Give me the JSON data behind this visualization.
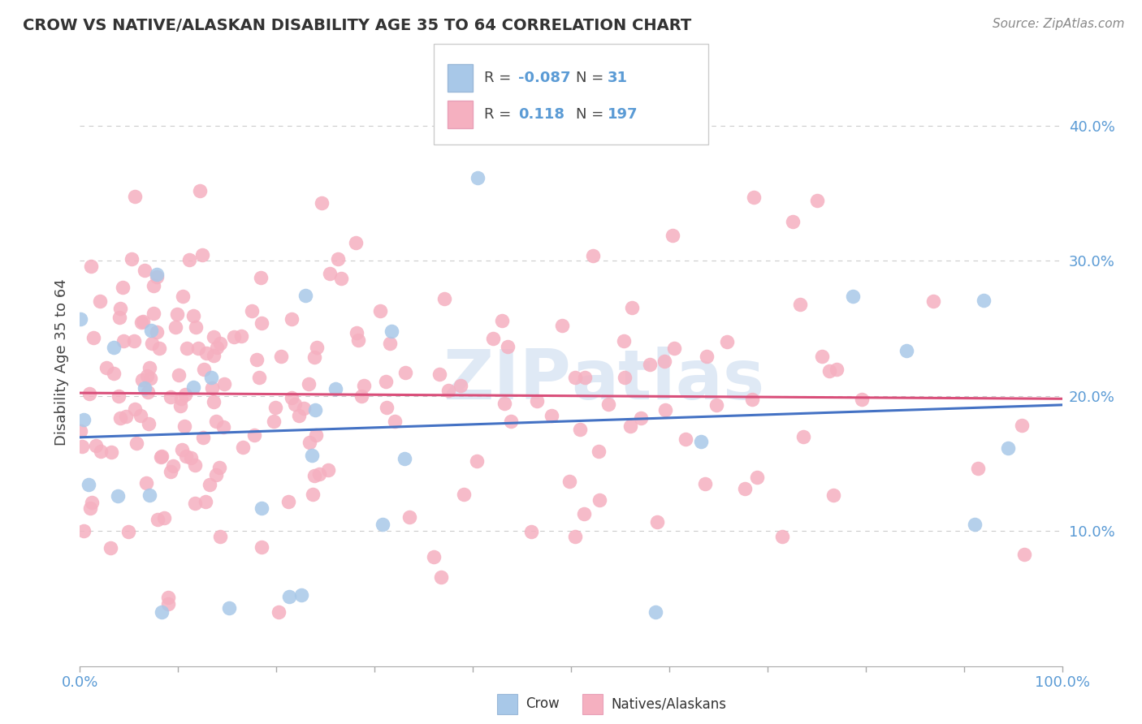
{
  "title": "CROW VS NATIVE/ALASKAN DISABILITY AGE 35 TO 64 CORRELATION CHART",
  "source": "Source: ZipAtlas.com",
  "ylabel": "Disability Age 35 to 64",
  "ylim": [
    0.0,
    0.45
  ],
  "xlim": [
    0.0,
    1.0
  ],
  "yticks": [
    0.1,
    0.2,
    0.3,
    0.4
  ],
  "ytick_labels": [
    "10.0%",
    "20.0%",
    "30.0%",
    "40.0%"
  ],
  "legend_R_crow": "-0.087",
  "legend_N_crow": "31",
  "legend_R_native": "0.118",
  "legend_N_native": "197",
  "crow_color": "#a8c8e8",
  "native_color": "#f5b0c0",
  "trendline_crow_color": "#4472c4",
  "trendline_native_color": "#d94f7a",
  "tick_color": "#5b9bd5",
  "watermark_color": "#c5d8ee",
  "background_color": "#ffffff",
  "grid_color": "#cccccc",
  "crow_seed": 12,
  "native_seed": 7,
  "n_crow": 31,
  "n_native": 197
}
